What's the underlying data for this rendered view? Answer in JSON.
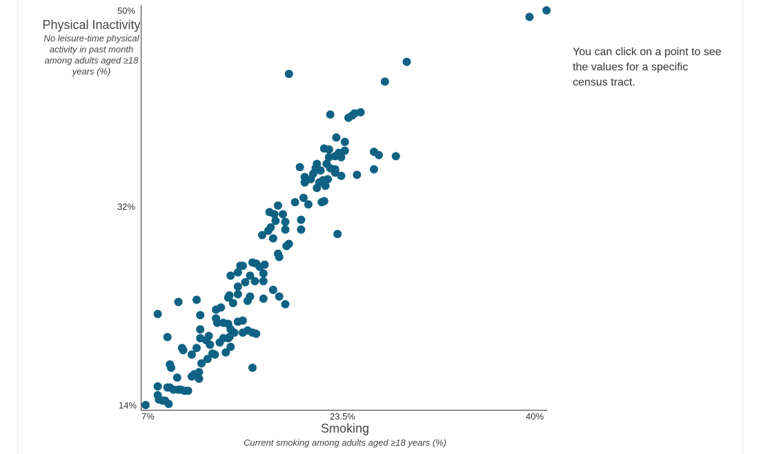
{
  "chart_data": {
    "type": "scatter",
    "color": "#0f6283",
    "xlabel": "Smoking",
    "xsublabel": "Current smoking among adults aged ≥18 years (%)",
    "ylabel": "Physical Inactivity",
    "ysublabel": "No leisure-time physical activity in past month among adults aged ≥18 years (%)",
    "xlim": [
      7,
      40
    ],
    "ylim": [
      14,
      50
    ],
    "xticks": [
      "7%",
      "23.5%",
      "40%"
    ],
    "yticks": [
      "50%",
      "32%",
      "14%"
    ],
    "grid": false,
    "points": [
      [
        7.0,
        14.0
      ],
      [
        8.0,
        15.7
      ],
      [
        8.0,
        14.9
      ],
      [
        8.1,
        14.5
      ],
      [
        8.4,
        14.4
      ],
      [
        8.9,
        14.1
      ],
      [
        8.6,
        14.4
      ],
      [
        8.8,
        15.6
      ],
      [
        9.3,
        15.4
      ],
      [
        9.7,
        15.4
      ],
      [
        9.9,
        15.4
      ],
      [
        10.2,
        15.3
      ],
      [
        10.5,
        15.3
      ],
      [
        9.0,
        15.6
      ],
      [
        9.6,
        16.5
      ],
      [
        10.8,
        16.6
      ],
      [
        11.4,
        16.4
      ],
      [
        11.4,
        17.0
      ],
      [
        11.0,
        16.8
      ],
      [
        11.6,
        17.8
      ],
      [
        12.1,
        18.2
      ],
      [
        12.5,
        18.7
      ],
      [
        12.3,
        19.5
      ],
      [
        13.1,
        19.7
      ],
      [
        13.4,
        20.1
      ],
      [
        13.8,
        20.1
      ],
      [
        14.0,
        19.3
      ],
      [
        13.6,
        18.8
      ],
      [
        12.7,
        18.6
      ],
      [
        9.0,
        17.7
      ],
      [
        9.1,
        17.4
      ],
      [
        10.0,
        19.2
      ],
      [
        10.1,
        19.0
      ],
      [
        10.8,
        18.6
      ],
      [
        11.2,
        19.2
      ],
      [
        11.5,
        20.9
      ],
      [
        11.5,
        20.1
      ],
      [
        12.0,
        19.9
      ],
      [
        12.2,
        20.3
      ],
      [
        12.9,
        21.5
      ],
      [
        12.8,
        22.7
      ],
      [
        13.2,
        22.9
      ],
      [
        13.4,
        21.5
      ],
      [
        13.8,
        21.4
      ],
      [
        14.0,
        20.9
      ],
      [
        14.6,
        21.6
      ],
      [
        15.0,
        21.7
      ],
      [
        13.9,
        20.2
      ],
      [
        14.3,
        20.6
      ],
      [
        15.0,
        20.6
      ],
      [
        15.4,
        20.8
      ],
      [
        15.8,
        20.6
      ],
      [
        16.1,
        20.5
      ],
      [
        15.8,
        17.4
      ],
      [
        8.8,
        20.2
      ],
      [
        8.0,
        22.3
      ],
      [
        9.7,
        23.4
      ],
      [
        11.2,
        23.6
      ],
      [
        11.5,
        22.2
      ],
      [
        12.8,
        21.9
      ],
      [
        13.8,
        23.8
      ],
      [
        14.2,
        23.3
      ],
      [
        13.9,
        24.0
      ],
      [
        14.6,
        24.1
      ],
      [
        14.6,
        24.8
      ],
      [
        15.2,
        25.2
      ],
      [
        15.4,
        23.5
      ],
      [
        15.6,
        23.9
      ],
      [
        16.0,
        25.3
      ],
      [
        16.7,
        25.3
      ],
      [
        16.7,
        23.7
      ],
      [
        17.5,
        24.5
      ],
      [
        18.0,
        23.9
      ],
      [
        18.5,
        23.2
      ],
      [
        14.0,
        25.8
      ],
      [
        14.6,
        26.1
      ],
      [
        14.8,
        26.7
      ],
      [
        15.0,
        26.7
      ],
      [
        15.8,
        27.0
      ],
      [
        16.1,
        26.9
      ],
      [
        16.4,
        26.6
      ],
      [
        16.8,
        26.8
      ],
      [
        16.7,
        26.0
      ],
      [
        15.6,
        25.8
      ],
      [
        16.6,
        29.5
      ],
      [
        17.1,
        29.9
      ],
      [
        17.3,
        30.2
      ],
      [
        17.5,
        29.2
      ],
      [
        17.7,
        30.8
      ],
      [
        17.9,
        32.2
      ],
      [
        17.2,
        31.6
      ],
      [
        17.6,
        31.4
      ],
      [
        18.3,
        31.4
      ],
      [
        18.5,
        30.7
      ],
      [
        17.9,
        27.8
      ],
      [
        18.0,
        27.5
      ],
      [
        18.5,
        30.0
      ],
      [
        18.8,
        28.7
      ],
      [
        18.6,
        28.5
      ],
      [
        19.8,
        30.0
      ],
      [
        19.8,
        30.9
      ],
      [
        19.3,
        32.5
      ],
      [
        20.0,
        32.9
      ],
      [
        20.4,
        32.3
      ],
      [
        21.5,
        32.5
      ],
      [
        21.7,
        32.6
      ],
      [
        22.8,
        29.6
      ],
      [
        19.7,
        35.7
      ],
      [
        20.1,
        34.8
      ],
      [
        20.1,
        34.3
      ],
      [
        20.6,
        34.6
      ],
      [
        20.8,
        35.1
      ],
      [
        21.0,
        35.6
      ],
      [
        21.1,
        33.8
      ],
      [
        21.3,
        34.3
      ],
      [
        21.6,
        34.5
      ],
      [
        21.8,
        34.0
      ],
      [
        22.0,
        34.6
      ],
      [
        21.4,
        35.4
      ],
      [
        21.9,
        36.0
      ],
      [
        22.1,
        36.6
      ],
      [
        22.6,
        36.7
      ],
      [
        22.9,
        37.0
      ],
      [
        23.1,
        36.6
      ],
      [
        23.4,
        37.2
      ],
      [
        22.6,
        35.5
      ],
      [
        22.6,
        35.2
      ],
      [
        22.2,
        35.6
      ],
      [
        23.1,
        34.9
      ],
      [
        21.1,
        36.0
      ],
      [
        21.7,
        37.4
      ],
      [
        22.1,
        37.3
      ],
      [
        22.7,
        38.4
      ],
      [
        23.4,
        38.0
      ],
      [
        25.8,
        37.1
      ],
      [
        26.2,
        36.8
      ],
      [
        27.6,
        36.7
      ],
      [
        25.8,
        35.5
      ],
      [
        24.4,
        35.0
      ],
      [
        22.2,
        40.5
      ],
      [
        23.7,
        40.2
      ],
      [
        24.0,
        40.4
      ],
      [
        24.2,
        40.6
      ],
      [
        24.7,
        40.7
      ],
      [
        18.8,
        44.2
      ],
      [
        26.7,
        43.5
      ],
      [
        28.5,
        45.3
      ],
      [
        38.6,
        49.4
      ],
      [
        40.0,
        50.0
      ]
    ]
  },
  "note": "You can click on a point to see the values for a specific census tract."
}
